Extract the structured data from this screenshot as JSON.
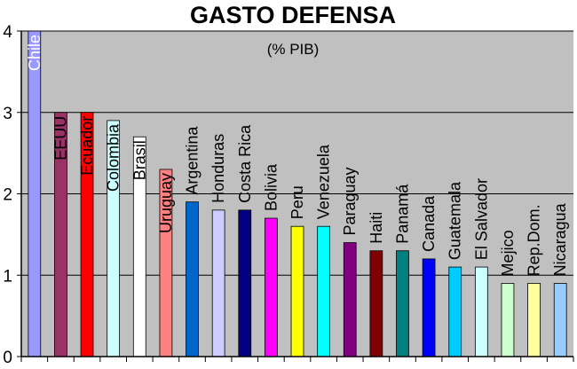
{
  "chart_data": {
    "type": "bar",
    "title": "GASTO DEFENSA",
    "subtitle": "(% PIB)",
    "xlabel": "",
    "ylabel": "",
    "ylim": [
      0,
      4
    ],
    "yticks": [
      "0",
      "1",
      "2",
      "3",
      "4"
    ],
    "grid": true,
    "legend": "none",
    "plot_background": "#c0c0c0",
    "categories": [
      "Chile",
      "EEUU",
      "Ecuador",
      "Colombia",
      "Brasil",
      "Uruguay",
      "Argentina",
      "Honduras",
      "Costa Rica",
      "Bolivia",
      "Peru",
      "Venezuela",
      "Paraguay",
      "Haiti",
      "Panamá",
      "Canada",
      "Guatemala",
      "El Salvador",
      "Mejico",
      "Rep.Dom.",
      "Nicaragua"
    ],
    "values": [
      4.0,
      3.0,
      3.0,
      2.9,
      2.7,
      2.3,
      1.9,
      1.8,
      1.8,
      1.7,
      1.6,
      1.6,
      1.4,
      1.3,
      1.3,
      1.2,
      1.1,
      1.1,
      0.9,
      0.9,
      0.9
    ],
    "colors": [
      "#9999ff",
      "#993366",
      "#ff0000",
      "#ccffff",
      "#ffffff",
      "#ff8080",
      "#0066cc",
      "#ccccff",
      "#000080",
      "#ff00ff",
      "#ffff00",
      "#00ffff",
      "#800080",
      "#800000",
      "#008080",
      "#0000ff",
      "#00ccff",
      "#ccffff",
      "#ccffcc",
      "#ffff99",
      "#99ccff"
    ],
    "label_colors": [
      "#ffffff",
      "#000000",
      "#000000",
      "#000000",
      "#000000",
      "#000000",
      "#000000",
      "#000000",
      "#ffffff",
      "#000000",
      "#000000",
      "#000000",
      "#000000",
      "#000000",
      "#000000",
      "#ffffff",
      "#000000",
      "#000000",
      "#000000",
      "#000000",
      "#000000"
    ]
  }
}
